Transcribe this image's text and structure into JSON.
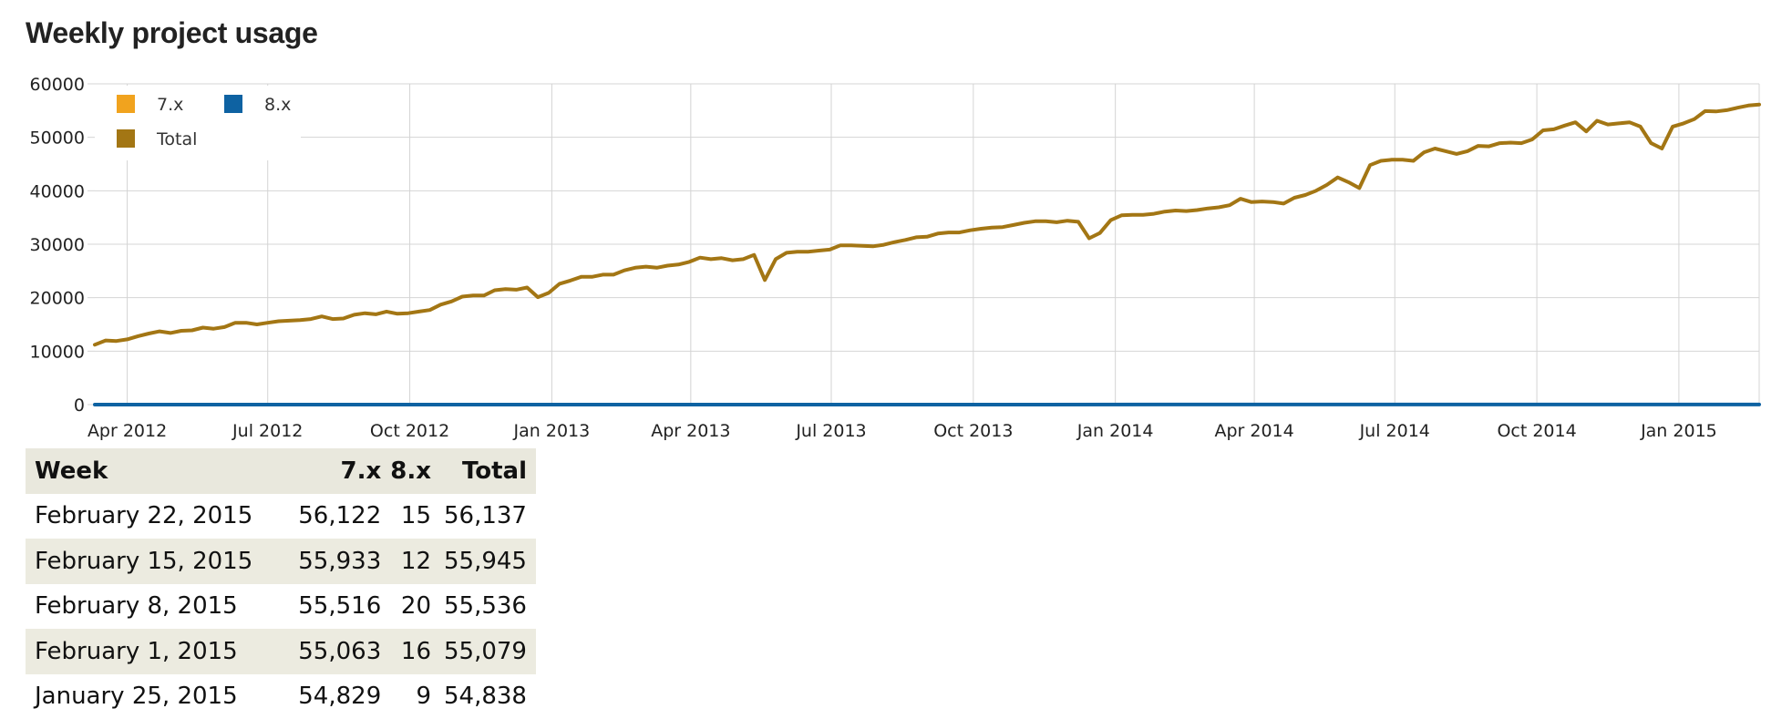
{
  "title": "Weekly project usage",
  "colors": {
    "series_7x": "#f1a31e",
    "series_8x": "#0e62a2",
    "series_total": "#a37614",
    "grid": "#d4d4d4",
    "table_stripe": "#ecebe0"
  },
  "chart_data": {
    "type": "line",
    "title": "",
    "xlabel": "",
    "ylabel": "",
    "ylim": [
      0,
      60000
    ],
    "y_ticks": [
      "0",
      "10000",
      "20000",
      "30000",
      "40000",
      "50000",
      "60000"
    ],
    "x_ticks": [
      "Apr 2012",
      "Jul 2012",
      "Oct 2012",
      "Jan 2013",
      "Apr 2013",
      "Jul 2013",
      "Oct 2013",
      "Jan 2014",
      "Apr 2014",
      "Jul 2014",
      "Oct 2014",
      "Jan 2015"
    ],
    "x_tick_dates": [
      "2012-04-01",
      "2012-07-01",
      "2012-10-01",
      "2013-01-01",
      "2013-04-01",
      "2013-07-01",
      "2013-10-01",
      "2014-01-01",
      "2014-04-01",
      "2014-07-01",
      "2014-10-01",
      "2015-01-01"
    ],
    "xlim": [
      "2012-03-11",
      "2015-02-22"
    ],
    "grid": true,
    "legend_placement": "top-left",
    "legend": [
      {
        "label": "7.x",
        "color": "#f1a31e"
      },
      {
        "label": "8.x",
        "color": "#0e62a2"
      },
      {
        "label": "Total",
        "color": "#a37614"
      }
    ],
    "series": [
      {
        "name": "Total",
        "color": "#a37614",
        "points": [
          [
            "2012-03-11",
            11200
          ],
          [
            "2012-03-18",
            12000
          ],
          [
            "2012-03-25",
            11900
          ],
          [
            "2012-04-01",
            12200
          ],
          [
            "2012-04-08",
            12800
          ],
          [
            "2012-04-15",
            13300
          ],
          [
            "2012-04-22",
            13700
          ],
          [
            "2012-04-29",
            13400
          ],
          [
            "2012-05-06",
            13800
          ],
          [
            "2012-05-13",
            13900
          ],
          [
            "2012-05-20",
            14400
          ],
          [
            "2012-05-27",
            14200
          ],
          [
            "2012-06-03",
            14500
          ],
          [
            "2012-06-10",
            15300
          ],
          [
            "2012-06-17",
            15300
          ],
          [
            "2012-06-24",
            15000
          ],
          [
            "2012-07-01",
            15300
          ],
          [
            "2012-07-08",
            15600
          ],
          [
            "2012-07-15",
            15700
          ],
          [
            "2012-07-22",
            15800
          ],
          [
            "2012-07-29",
            16000
          ],
          [
            "2012-08-05",
            16500
          ],
          [
            "2012-08-12",
            16000
          ],
          [
            "2012-08-19",
            16100
          ],
          [
            "2012-08-26",
            16800
          ],
          [
            "2012-09-02",
            17100
          ],
          [
            "2012-09-09",
            16900
          ],
          [
            "2012-09-16",
            17400
          ],
          [
            "2012-09-23",
            17000
          ],
          [
            "2012-09-30",
            17100
          ],
          [
            "2012-10-07",
            17400
          ],
          [
            "2012-10-14",
            17700
          ],
          [
            "2012-10-21",
            18700
          ],
          [
            "2012-10-28",
            19300
          ],
          [
            "2012-11-04",
            20200
          ],
          [
            "2012-11-11",
            20400
          ],
          [
            "2012-11-18",
            20400
          ],
          [
            "2012-11-25",
            21400
          ],
          [
            "2012-12-02",
            21600
          ],
          [
            "2012-12-09",
            21500
          ],
          [
            "2012-12-16",
            21900
          ],
          [
            "2012-12-23",
            20100
          ],
          [
            "2012-12-30",
            20900
          ],
          [
            "2013-01-06",
            22600
          ],
          [
            "2013-01-13",
            23200
          ],
          [
            "2013-01-20",
            23900
          ],
          [
            "2013-01-27",
            23900
          ],
          [
            "2013-02-03",
            24300
          ],
          [
            "2013-02-10",
            24300
          ],
          [
            "2013-02-17",
            25100
          ],
          [
            "2013-02-24",
            25600
          ],
          [
            "2013-03-03",
            25800
          ],
          [
            "2013-03-10",
            25600
          ],
          [
            "2013-03-17",
            26000
          ],
          [
            "2013-03-24",
            26200
          ],
          [
            "2013-03-31",
            26700
          ],
          [
            "2013-04-07",
            27500
          ],
          [
            "2013-04-14",
            27200
          ],
          [
            "2013-04-21",
            27400
          ],
          [
            "2013-04-28",
            27000
          ],
          [
            "2013-05-05",
            27200
          ],
          [
            "2013-05-12",
            28000
          ],
          [
            "2013-05-19",
            23300
          ],
          [
            "2013-05-26",
            27200
          ],
          [
            "2013-06-02",
            28400
          ],
          [
            "2013-06-09",
            28600
          ],
          [
            "2013-06-16",
            28600
          ],
          [
            "2013-06-23",
            28800
          ],
          [
            "2013-06-30",
            29000
          ],
          [
            "2013-07-07",
            29800
          ],
          [
            "2013-07-14",
            29800
          ],
          [
            "2013-07-21",
            29700
          ],
          [
            "2013-07-28",
            29600
          ],
          [
            "2013-08-04",
            29900
          ],
          [
            "2013-08-11",
            30400
          ],
          [
            "2013-08-18",
            30800
          ],
          [
            "2013-08-25",
            31300
          ],
          [
            "2013-09-01",
            31400
          ],
          [
            "2013-09-08",
            32000
          ],
          [
            "2013-09-15",
            32200
          ],
          [
            "2013-09-22",
            32200
          ],
          [
            "2013-09-29",
            32600
          ],
          [
            "2013-10-06",
            32900
          ],
          [
            "2013-10-13",
            33100
          ],
          [
            "2013-10-20",
            33200
          ],
          [
            "2013-10-27",
            33600
          ],
          [
            "2013-11-03",
            34000
          ],
          [
            "2013-11-10",
            34300
          ],
          [
            "2013-11-17",
            34300
          ],
          [
            "2013-11-24",
            34100
          ],
          [
            "2013-12-01",
            34400
          ],
          [
            "2013-12-08",
            34200
          ],
          [
            "2013-12-15",
            31100
          ],
          [
            "2013-12-22",
            32100
          ],
          [
            "2013-12-29",
            34500
          ],
          [
            "2014-01-05",
            35400
          ],
          [
            "2014-01-12",
            35500
          ],
          [
            "2014-01-19",
            35500
          ],
          [
            "2014-01-26",
            35700
          ],
          [
            "2014-02-02",
            36100
          ],
          [
            "2014-02-09",
            36300
          ],
          [
            "2014-02-16",
            36200
          ],
          [
            "2014-02-23",
            36400
          ],
          [
            "2014-03-02",
            36700
          ],
          [
            "2014-03-09",
            36900
          ],
          [
            "2014-03-16",
            37300
          ],
          [
            "2014-03-23",
            38500
          ],
          [
            "2014-03-30",
            37900
          ],
          [
            "2014-04-06",
            38000
          ],
          [
            "2014-04-13",
            37900
          ],
          [
            "2014-04-20",
            37600
          ],
          [
            "2014-04-27",
            38700
          ],
          [
            "2014-05-04",
            39200
          ],
          [
            "2014-05-11",
            40000
          ],
          [
            "2014-05-18",
            41100
          ],
          [
            "2014-05-25",
            42500
          ],
          [
            "2014-06-01",
            41600
          ],
          [
            "2014-06-08",
            40500
          ],
          [
            "2014-06-15",
            44800
          ],
          [
            "2014-06-22",
            45600
          ],
          [
            "2014-06-29",
            45800
          ],
          [
            "2014-07-06",
            45800
          ],
          [
            "2014-07-13",
            45600
          ],
          [
            "2014-07-20",
            47200
          ],
          [
            "2014-07-27",
            47900
          ],
          [
            "2014-08-03",
            47400
          ],
          [
            "2014-08-10",
            46900
          ],
          [
            "2014-08-17",
            47400
          ],
          [
            "2014-08-24",
            48400
          ],
          [
            "2014-08-31",
            48300
          ],
          [
            "2014-09-07",
            48900
          ],
          [
            "2014-09-14",
            49000
          ],
          [
            "2014-09-21",
            48900
          ],
          [
            "2014-09-28",
            49600
          ],
          [
            "2014-10-05",
            51300
          ],
          [
            "2014-10-12",
            51500
          ],
          [
            "2014-10-19",
            52200
          ],
          [
            "2014-10-26",
            52800
          ],
          [
            "2014-11-02",
            51100
          ],
          [
            "2014-11-09",
            53100
          ],
          [
            "2014-11-16",
            52400
          ],
          [
            "2014-11-23",
            52600
          ],
          [
            "2014-11-30",
            52800
          ],
          [
            "2014-12-07",
            52000
          ],
          [
            "2014-12-14",
            48900
          ],
          [
            "2014-12-21",
            47900
          ],
          [
            "2014-12-28",
            52000
          ],
          [
            "2015-01-04",
            52600
          ],
          [
            "2015-01-11",
            53400
          ],
          [
            "2015-01-18",
            54900
          ],
          [
            "2015-01-25",
            54838
          ],
          [
            "2015-02-01",
            55079
          ],
          [
            "2015-02-08",
            55536
          ],
          [
            "2015-02-15",
            55945
          ],
          [
            "2015-02-22",
            56137
          ]
        ]
      },
      {
        "name": "8.x",
        "color": "#0e62a2",
        "points": [
          [
            "2012-03-11",
            0
          ],
          [
            "2015-01-25",
            9
          ],
          [
            "2015-02-01",
            16
          ],
          [
            "2015-02-08",
            20
          ],
          [
            "2015-02-15",
            12
          ],
          [
            "2015-02-22",
            15
          ]
        ]
      }
    ]
  },
  "table": {
    "headers": {
      "week": "Week",
      "v7": "7.x",
      "v8": "8.x",
      "total": "Total"
    },
    "rows": [
      {
        "week": "February 22, 2015",
        "v7": "56,122",
        "v8": "15",
        "total": "56,137"
      },
      {
        "week": "February 15, 2015",
        "v7": "55,933",
        "v8": "12",
        "total": "55,945"
      },
      {
        "week": "February 8, 2015",
        "v7": "55,516",
        "v8": "20",
        "total": "55,536"
      },
      {
        "week": "February 1, 2015",
        "v7": "55,063",
        "v8": "16",
        "total": "55,079"
      },
      {
        "week": "January 25, 2015",
        "v7": "54,829",
        "v8": "9",
        "total": "54,838"
      }
    ]
  }
}
